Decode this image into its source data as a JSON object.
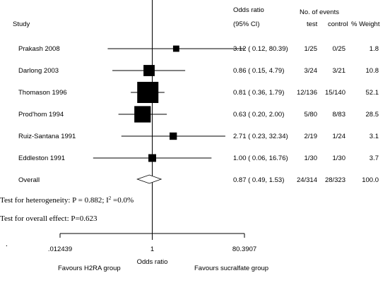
{
  "chart_data": {
    "type": "forest",
    "headers": {
      "study": "Study",
      "or_line1": "Odds ratio",
      "or_line2": "(95% CI)",
      "events": "No. of events",
      "test": "test",
      "control": "control",
      "weight": "% Weight"
    },
    "studies": [
      {
        "name": "Prakash 2008",
        "or": 3.12,
        "lo": 0.12,
        "hi": 80.39,
        "or_text": "3.12 ( 0.12, 80.39)",
        "test": "1/25",
        "control": "0/25",
        "weight": 1.8,
        "weight_text": "1.8"
      },
      {
        "name": "Darlong 2003",
        "or": 0.86,
        "lo": 0.15,
        "hi": 4.79,
        "or_text": "0.86 ( 0.15, 4.79)",
        "test": "3/24",
        "control": "3/21",
        "weight": 10.8,
        "weight_text": "10.8"
      },
      {
        "name": "Thomason 1996",
        "or": 0.81,
        "lo": 0.36,
        "hi": 1.79,
        "or_text": "0.81 ( 0.36, 1.79)",
        "test": "12/136",
        "control": "15/140",
        "weight": 52.1,
        "weight_text": "52.1"
      },
      {
        "name": "Prod'hom 1994",
        "or": 0.63,
        "lo": 0.2,
        "hi": 2.0,
        "or_text": "0.63 ( 0.20, 2.00)",
        "test": "5/80",
        "control": "8/83",
        "weight": 28.5,
        "weight_text": "28.5"
      },
      {
        "name": "Ruiz-Santana 1991",
        "or": 2.71,
        "lo": 0.23,
        "hi": 32.34,
        "or_text": "2.71 ( 0.23, 32.34)",
        "test": "2/19",
        "control": "1/24",
        "weight": 3.1,
        "weight_text": "3.1"
      },
      {
        "name": "Eddleston 1991",
        "or": 1.0,
        "lo": 0.06,
        "hi": 16.76,
        "or_text": "1.00 ( 0.06, 16.76)",
        "test": "1/30",
        "control": "1/30",
        "weight": 3.7,
        "weight_text": "3.7"
      }
    ],
    "overall": {
      "name": "Overall",
      "or": 0.87,
      "lo": 0.49,
      "hi": 1.53,
      "or_text": "0.87 ( 0.49, 1.53)",
      "test": "24/314",
      "control": "28/323",
      "weight_text": "100.0"
    },
    "heterogeneity_prefix": "Test for heterogeneity: P = 0.882; I",
    "heterogeneity_sup": "2",
    "heterogeneity_suffix": " =0.0%",
    "overall_effect": "Test for overall effect: P=0.623",
    "x_axis": {
      "scale": "log",
      "ticks": [
        0.012439,
        1,
        80.3907
      ],
      "tick_labels": [
        ".012439",
        "1",
        "80.3907"
      ],
      "label": "Odds ratio"
    },
    "favours_left": "Favours H2RA group",
    "favours_right": "Favours sucralfate group",
    "stray_mark": "."
  }
}
